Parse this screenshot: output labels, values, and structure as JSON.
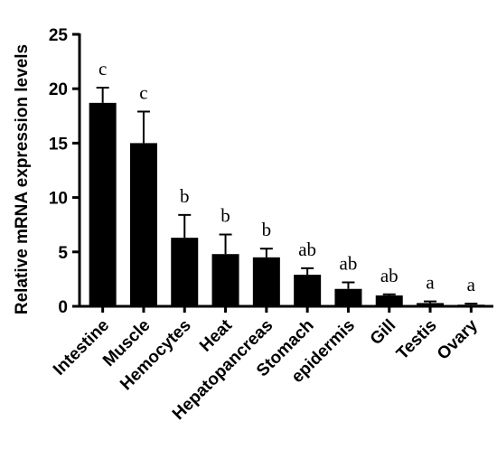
{
  "chart_data": {
    "type": "bar",
    "title": "",
    "xlabel": "",
    "ylabel": "Relative mRNA expression levels",
    "ylim": [
      0,
      25
    ],
    "yticks": [
      0,
      5,
      10,
      15,
      20,
      25
    ],
    "grid": false,
    "legend": "none",
    "bar_color": "#000000",
    "categories": [
      "Intestine",
      "Muscle",
      "Hemocytes",
      "Heat",
      "Hepatopancreas",
      "Stomach",
      "epidermis",
      "Gill",
      "Testis",
      "Ovary"
    ],
    "values": [
      18.7,
      15.0,
      6.3,
      4.8,
      4.5,
      2.9,
      1.6,
      1.0,
      0.3,
      0.15
    ],
    "errors": [
      1.4,
      2.9,
      2.1,
      1.8,
      0.8,
      0.6,
      0.6,
      0.1,
      0.15,
      0.1
    ],
    "significance": [
      "c",
      "c",
      "b",
      "b",
      "b",
      "ab",
      "ab",
      "ab",
      "a",
      "a"
    ]
  }
}
